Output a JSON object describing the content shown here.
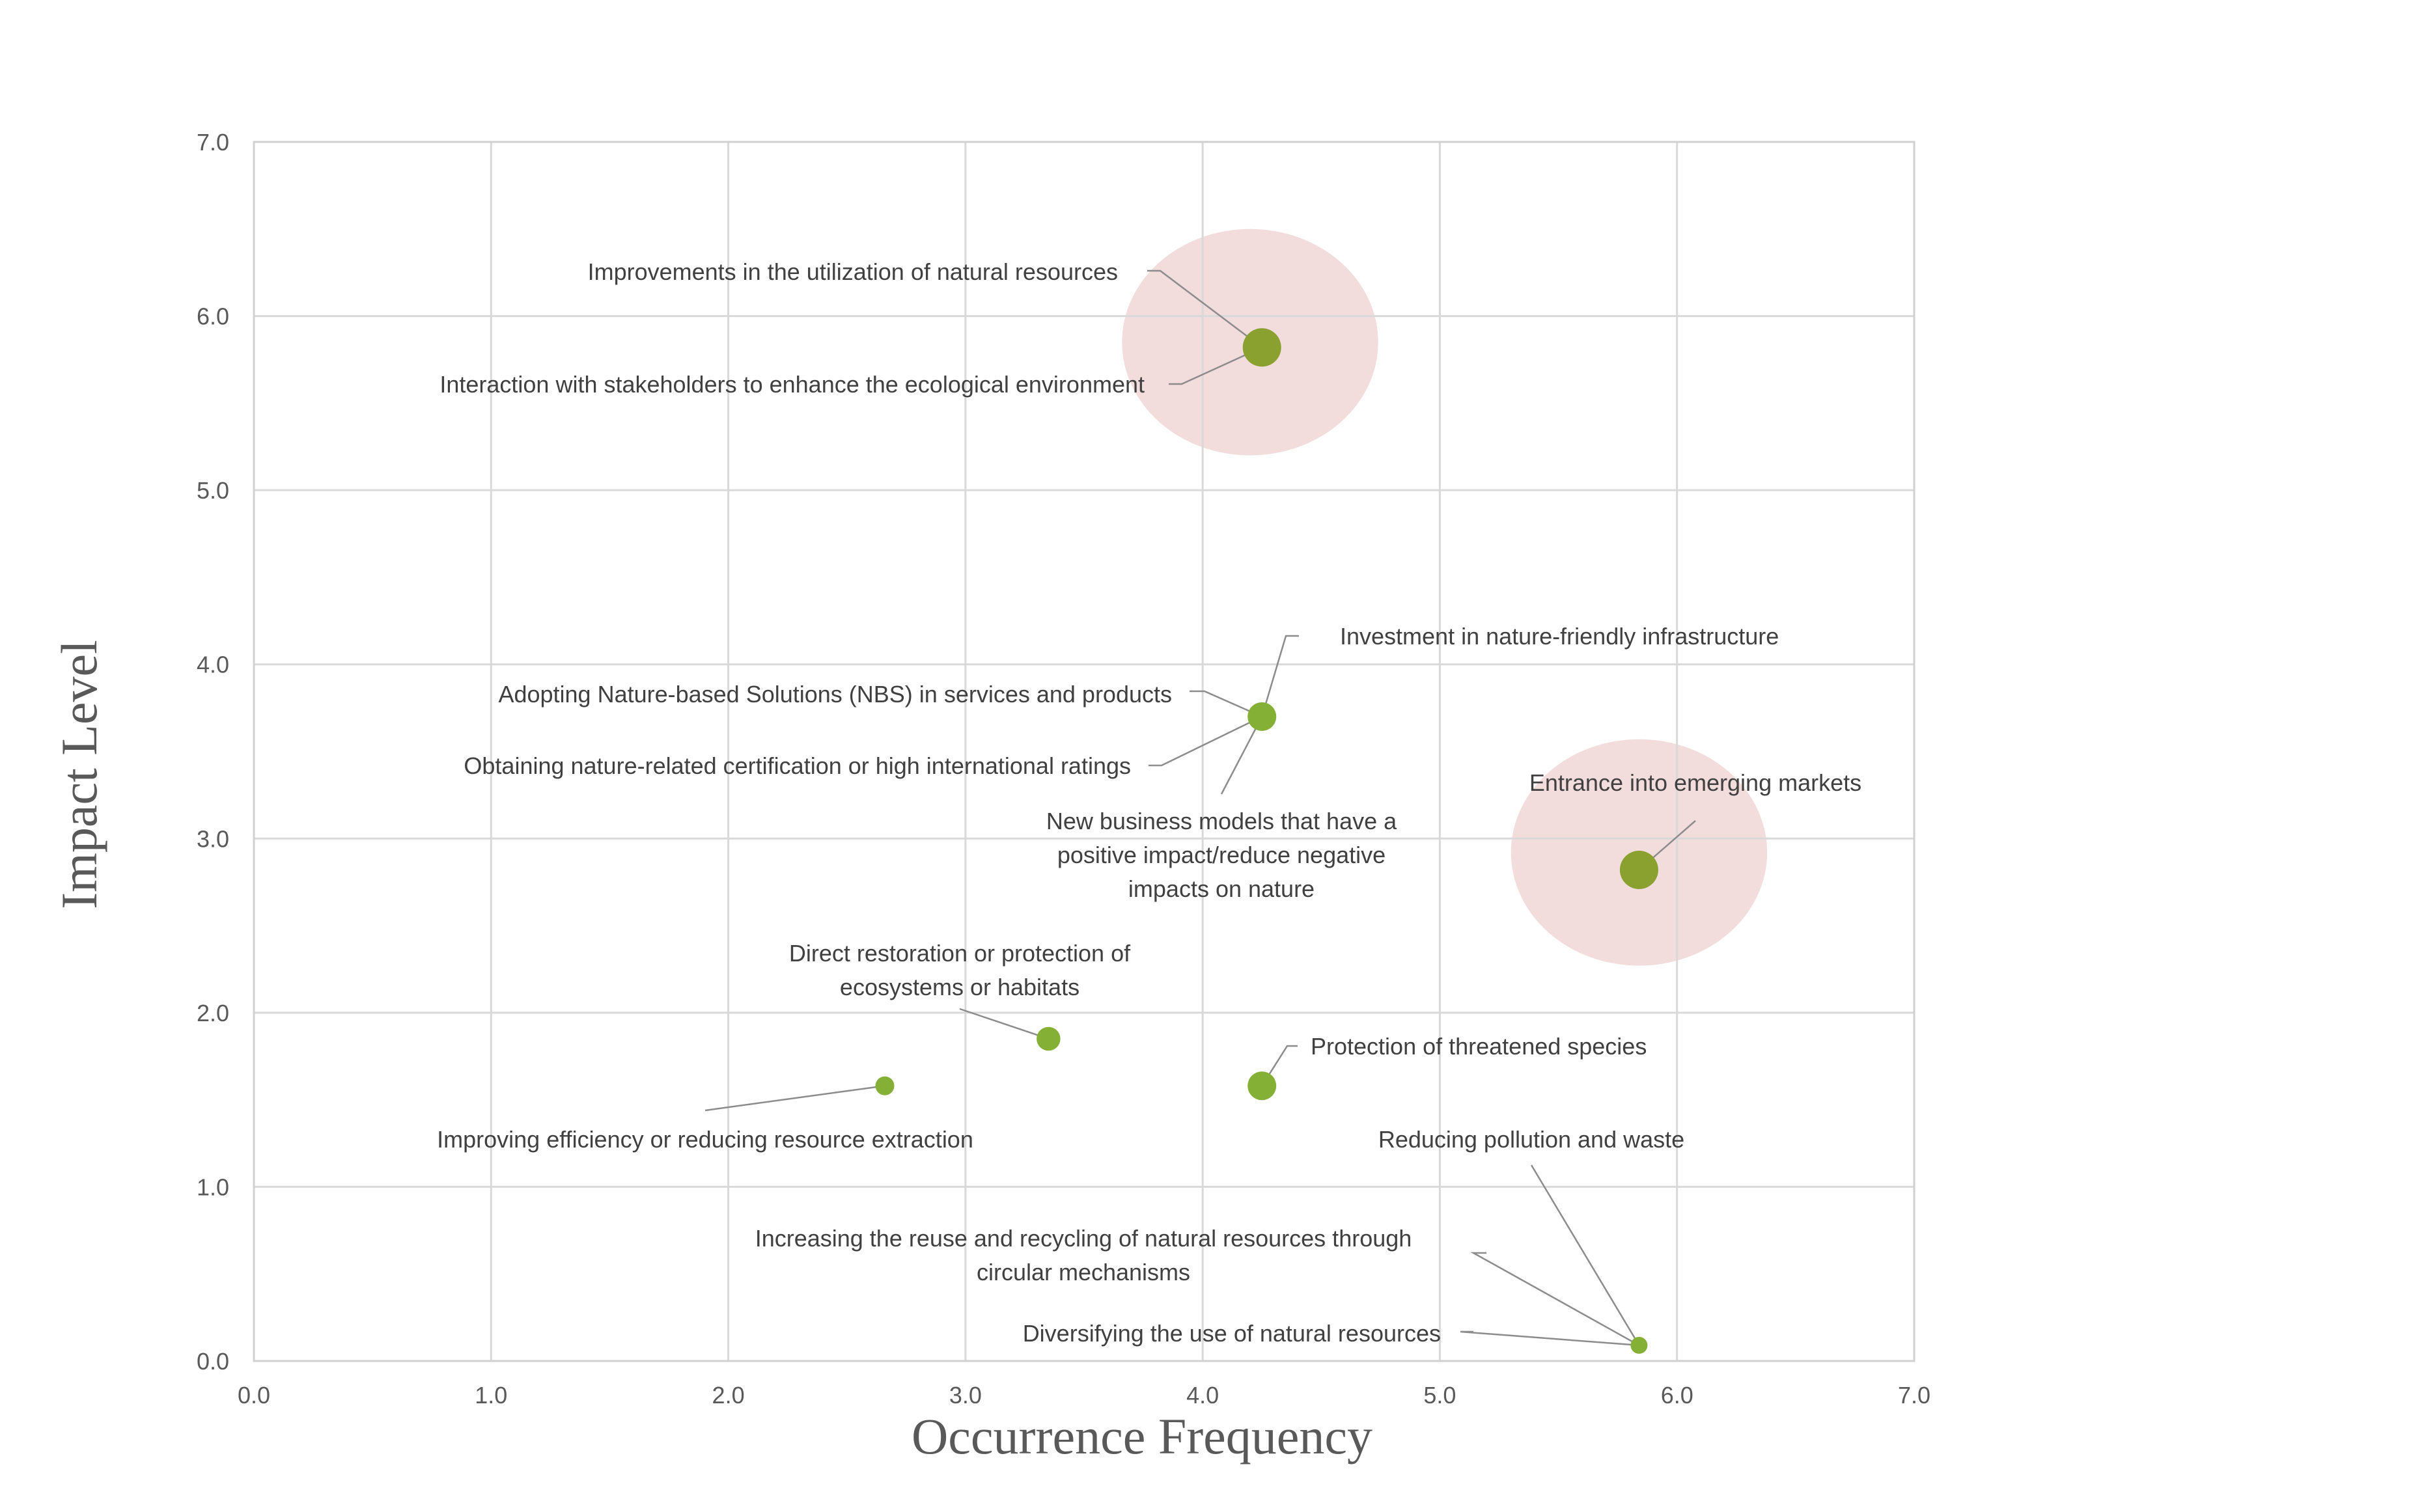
{
  "chart_data": {
    "type": "scatter",
    "xlabel": "Occurrence Frequency",
    "ylabel": "Impact Level",
    "xlim": [
      0,
      7
    ],
    "ylim": [
      0,
      7
    ],
    "x_ticks": [
      "0.0",
      "1.0",
      "2.0",
      "3.0",
      "4.0",
      "5.0",
      "6.0",
      "7.0"
    ],
    "y_ticks": [
      "0.0",
      "1.0",
      "2.0",
      "3.0",
      "4.0",
      "5.0",
      "6.0",
      "7.0"
    ],
    "grid": true,
    "legend": "none",
    "colors": {
      "point": "#84b135",
      "point_large": "#8aa130",
      "highlight": "#f2dcdc",
      "leader": "#8c8c8c",
      "grid": "#d9d9d9",
      "text": "#404040"
    },
    "points": [
      {
        "x": 4.25,
        "y": 5.82,
        "size": 3,
        "labels": [
          "Improvements in the utilization of natural resources",
          "Interaction with stakeholders to enhance the ecological environment"
        ]
      },
      {
        "x": 4.25,
        "y": 3.7,
        "size": 2,
        "labels": [
          "Investment in nature-friendly infrastructure",
          "Adopting Nature-based Solutions (NBS) in services and products",
          "Obtaining nature-related certification or high international ratings",
          "New business models that have a positive impact/reduce negative impacts on nature"
        ]
      },
      {
        "x": 5.84,
        "y": 2.82,
        "size": 3,
        "labels": [
          "Entrance into emerging markets"
        ]
      },
      {
        "x": 3.35,
        "y": 1.85,
        "size": 1.5,
        "labels": [
          "Direct restoration or protection of ecosystems or habitats"
        ]
      },
      {
        "x": 4.25,
        "y": 1.58,
        "size": 2,
        "labels": [
          "Protection of threatened species"
        ]
      },
      {
        "x": 2.66,
        "y": 1.58,
        "size": 1,
        "labels": [
          "Improving efficiency or reducing resource extraction"
        ]
      },
      {
        "x": 5.84,
        "y": 0.09,
        "size": 0.8,
        "labels": [
          "Reducing pollution and waste",
          "Increasing the reuse and recycling of natural resources through circular mechanisms",
          "Diversifying the use of natural resources"
        ]
      }
    ],
    "highlights": [
      {
        "cx": 4.2,
        "cy": 5.85,
        "rx": 0.54,
        "ry": 0.65
      },
      {
        "cx": 5.84,
        "cy": 2.92,
        "rx": 0.54,
        "ry": 0.65
      }
    ]
  }
}
